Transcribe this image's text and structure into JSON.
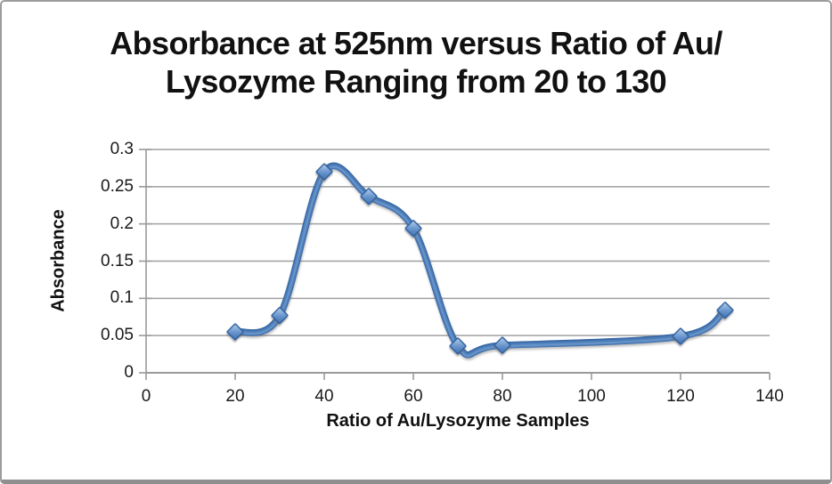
{
  "chart_data": {
    "type": "line",
    "smooth": true,
    "marker": "diamond",
    "title_line1": "Absorbance at 525nm versus Ratio of Au/",
    "title_line2": "Lysozyme Ranging from 20 to 130",
    "xlabel": "Ratio of Au/Lysozyme Samples",
    "ylabel": "Absorbance",
    "x": [
      20,
      30,
      40,
      50,
      60,
      70,
      80,
      120,
      130
    ],
    "y": [
      0.055,
      0.077,
      0.27,
      0.237,
      0.194,
      0.036,
      0.037,
      0.049,
      0.084
    ],
    "xlim": [
      0,
      140
    ],
    "ylim": [
      0,
      0.3
    ],
    "x_ticks": [
      "0",
      "20",
      "40",
      "60",
      "80",
      "100",
      "120",
      "140"
    ],
    "y_ticks": [
      "0",
      "0.05",
      "0.1",
      "0.15",
      "0.2",
      "0.25",
      "0.3"
    ],
    "grid": "horizontal",
    "legend": "none"
  },
  "style": {
    "series_color": "#4d7fbb",
    "series_edge_color": "#3a69a5",
    "series_highlight_color": "#7fa6d5",
    "marker_fill_light": "#b7d0ec",
    "marker_fill_dark": "#3f72b1",
    "marker_border": "#2e5e9e",
    "grid_color": "#a0a0a0",
    "axis_color": "#9a9a9a",
    "text_color": "#1a1a1a",
    "frame_border": "#9c9c9c",
    "frame_bottom": "#8f8f8f",
    "background": "#ffffff"
  }
}
